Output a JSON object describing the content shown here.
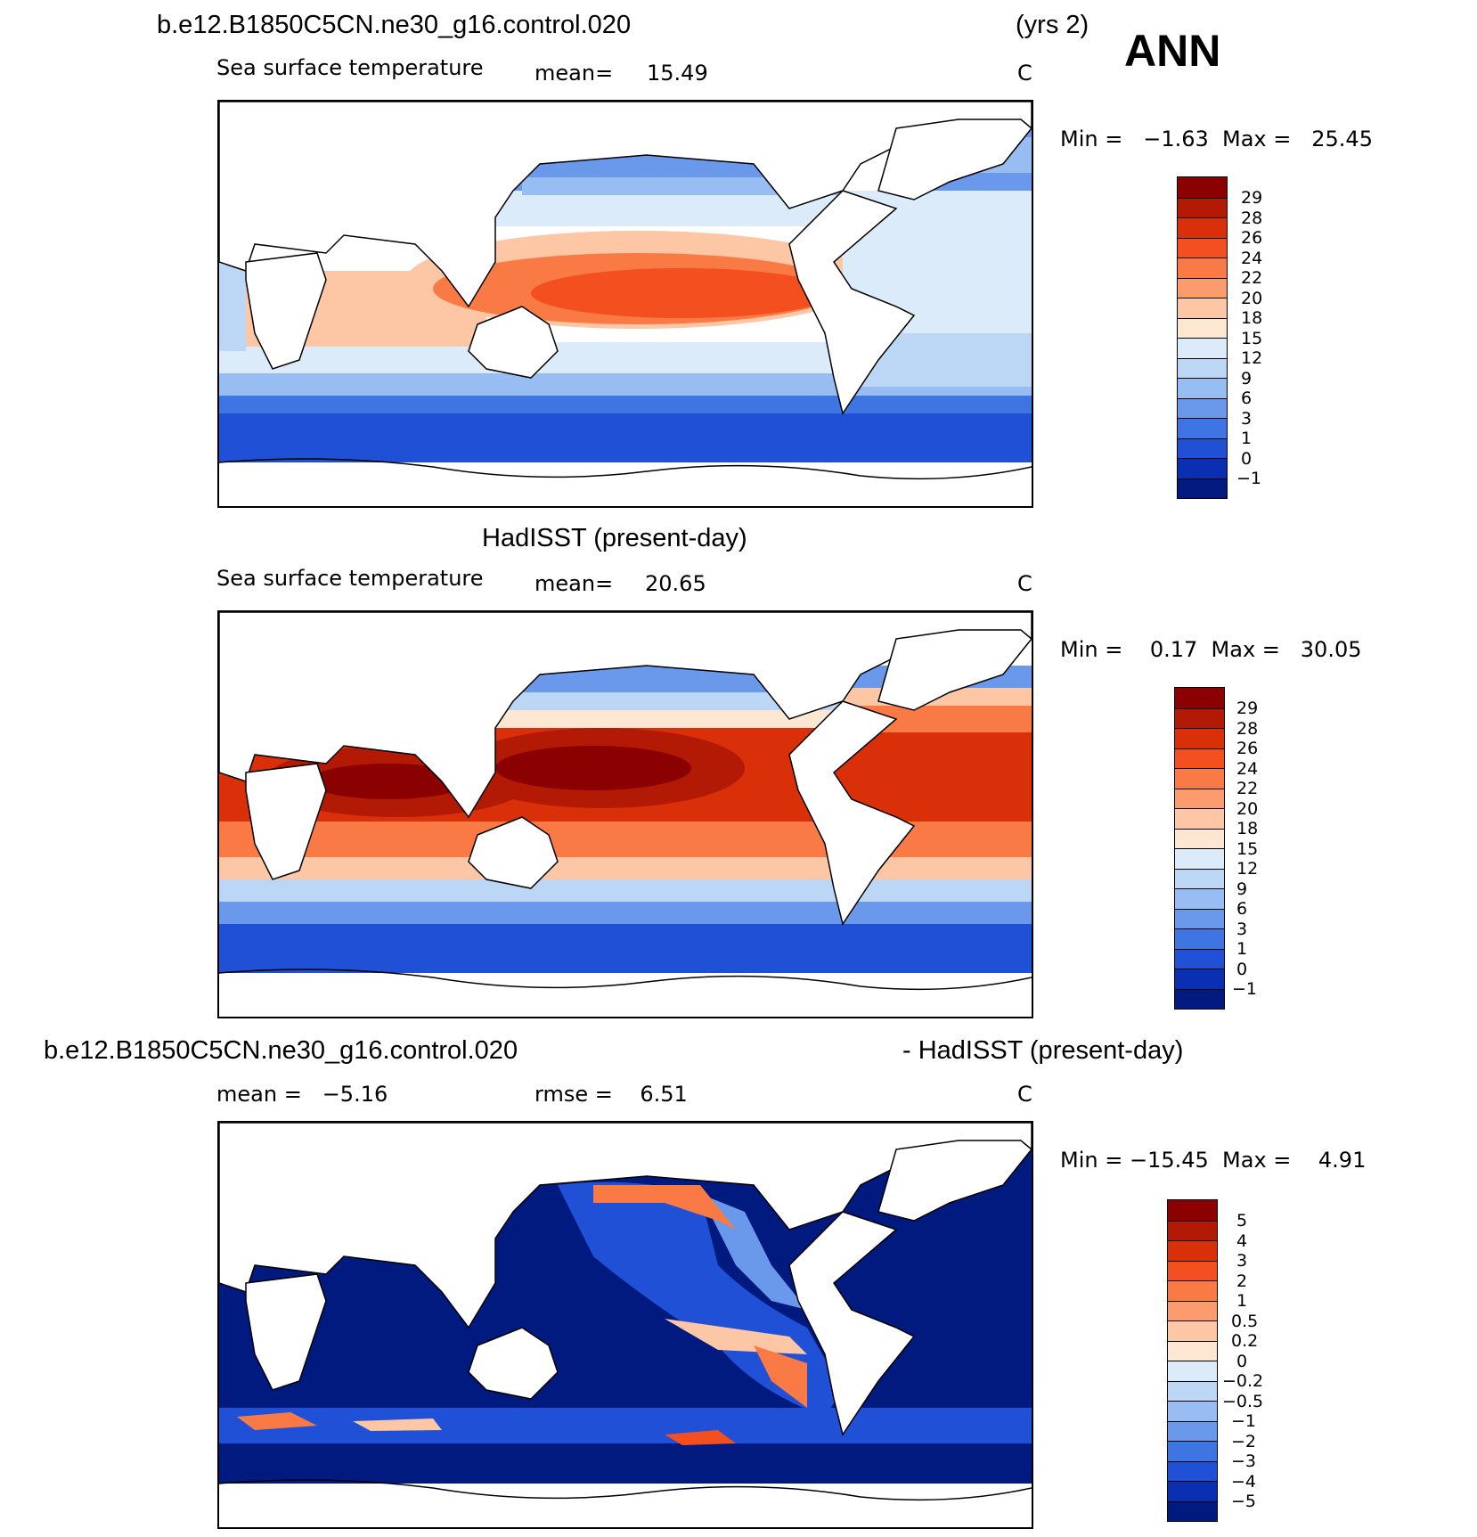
{
  "season": "ANN",
  "panels": [
    {
      "title": "b.e12.B1850C5CN.ne30_g16.control.020",
      "years": "(yrs 2)",
      "variable": "Sea surface temperature",
      "mean_label": "mean=",
      "mean_value": "15.49",
      "units": "C",
      "minmax": "Min =   −1.63  Max =   25.45",
      "colorbar_labels": [
        "29",
        "28",
        "26",
        "24",
        "22",
        "20",
        "18",
        "15",
        "12",
        "9",
        "6",
        "3",
        "1",
        "0",
        "−1"
      ],
      "colors": [
        "#8b0000",
        "#b21a05",
        "#d9300a",
        "#f4501f",
        "#fa7a45",
        "#fc9c6e",
        "#fdc6a4",
        "#fde6d2",
        "#dcebfa",
        "#bcd6f6",
        "#97bdf2",
        "#6a99ec",
        "#3f74e3",
        "#1f50d6",
        "#0a2fb3",
        "#001a80"
      ]
    },
    {
      "title": "HadISST (present-day)",
      "variable": "Sea surface temperature",
      "mean_label": "mean=",
      "mean_value": "20.65",
      "units": "C",
      "minmax": "Min =    0.17  Max =   30.05",
      "colorbar_labels": [
        "29",
        "28",
        "26",
        "24",
        "22",
        "20",
        "18",
        "15",
        "12",
        "9",
        "6",
        "3",
        "1",
        "0",
        "−1"
      ],
      "colors": [
        "#8b0000",
        "#b21a05",
        "#d9300a",
        "#f4501f",
        "#fa7a45",
        "#fc9c6e",
        "#fdc6a4",
        "#fde6d2",
        "#dcebfa",
        "#bcd6f6",
        "#97bdf2",
        "#6a99ec",
        "#3f74e3",
        "#1f50d6",
        "#0a2fb3",
        "#001a80"
      ]
    },
    {
      "title_left": "b.e12.B1850C5CN.ne30_g16.control.020",
      "title_right": "- HadISST (present-day)",
      "mean_text": "mean =   −5.16",
      "rmse_text": "rmse =    6.51",
      "units": "C",
      "minmax": "Min = −15.45  Max =    4.91",
      "colorbar_labels": [
        "5",
        "4",
        "3",
        "2",
        "1",
        "0.5",
        "0.2",
        "0",
        "−0.2",
        "−0.5",
        "−1",
        "−2",
        "−3",
        "−4",
        "−5"
      ],
      "colors": [
        "#8b0000",
        "#b21a05",
        "#d9300a",
        "#f4501f",
        "#fa7a45",
        "#fc9c6e",
        "#fdc6a4",
        "#fde6d2",
        "#dcebfa",
        "#bcd6f6",
        "#97bdf2",
        "#6a99ec",
        "#3f74e3",
        "#1f50d6",
        "#0a2fb3",
        "#001a80"
      ]
    }
  ]
}
